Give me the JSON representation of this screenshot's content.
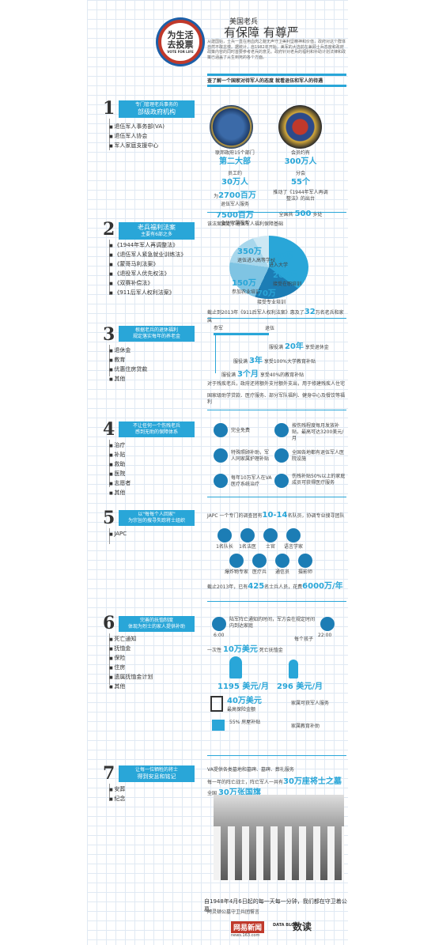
{
  "header": {
    "badge_line1": "为生活",
    "badge_line2": "去投票",
    "badge_sub": "VOTE FOR LIFE",
    "title_top": "美国老兵",
    "title_main": "有保障 有尊严",
    "intro": "从建国始，士兵一直在用血肉之躯无声守卫美利坚精神和价值，政府对这个群体自然不敢怠慢。据统计，自1982年开始，美军的大选前在兼顾士兵态度和政府政策内容的同时首要参考老兵的意见。政府针对老兵的福利和补助计划法律和政策已涵盖了从生到死的各个方面。",
    "banner": "查了解一个国家对待军人的态度 就看退伍和军人的待遇"
  },
  "s1": {
    "num": "1",
    "bar_l1": "专门管理老兵事务的",
    "bar_l2": "部级政府机构",
    "items": [
      "退伍军人事务部(VA)",
      "退伍军人协会",
      "军人家庭支援中心"
    ],
    "va_caption": "联邦政府15个部门",
    "va_big": "第二大部",
    "va_staff_label": "员工约",
    "va_staff": "30万人",
    "va_budget_pre": "为",
    "va_budget": "2700百万",
    "va_budget_suf": "退伍军人服务",
    "va_fund": "7500百万",
    "va_fund_suf": "全体家属服务",
    "al_caption": "会员约有",
    "al_members": "300万人",
    "al_branch_label": "分会",
    "al_branch": "55个",
    "al_note": "推动了《1944年军人再调整法》的出台",
    "al_posts_pre": "全国共",
    "al_posts": "500",
    "al_posts_suf": "多处"
  },
  "s2": {
    "num": "2",
    "bar_l1": "老兵福利法案",
    "bar_l2": "主要有6部之多",
    "items": [
      "《1944年军人再调整法》",
      "《退伍军人紧急就业训练法》",
      "《蒙哥马利法案》",
      "《退役军人优先权法》",
      "《双赛补偿法》",
      "《911后军人权利法案》"
    ],
    "note": "该法案奠定了退伍军人福利保障基础",
    "pie": [
      {
        "v": "350万",
        "t": "退伍进入高等学校"
      },
      {
        "v": "220万",
        "t": "进入大学"
      },
      {
        "v": "200万",
        "t": "接受在职培训"
      },
      {
        "v": "150万",
        "t": "参加农业培训"
      },
      {
        "v": "70万",
        "t": "接受专业培训"
      }
    ],
    "bottom_pre": "截止到2013年《911后军人权利法案》惠及了",
    "bottom_big": "32",
    "bottom_suf": "万名老兵和家属"
  },
  "s3": {
    "num": "3",
    "bar_l1": "根据老兵的退休福利",
    "bar_l2": "规定落实每年的养老金",
    "items": [
      "退休金",
      "教育",
      "优惠住房贷款",
      "其他"
    ],
    "tl_start": "参军",
    "tl_end": "退伍",
    "r1_pre": "服役满",
    "r1_big": "20年",
    "r1_suf": "享受退休金",
    "r2_pre": "服役满",
    "r2_big": "3年",
    "r2_suf": "享受100%大学教育补贴",
    "r3_pre": "服役满",
    "r3_big": "3个月",
    "r3_suf": "享受40%的教育补贴",
    "note1": "对于残疾老兵，政府还将额外支付额外支出，用于修建残疾人住宅",
    "note2": "国家级助学贷款、医疗服务、部分军队福利、健身中心及餐饮等福利"
  },
  "s4": {
    "num": "4",
    "bar_l1": "不让任何一个伤残老兵",
    "bar_l2": "感到无助的保障体系",
    "items": [
      "治疗",
      "补贴",
      "救助",
      "医院",
      "志愿者",
      "其他"
    ],
    "cells": [
      "完全免费",
      "按伤残程度每月发放补贴，最高可达3200美元/月",
      "特殊照顾补助，军人同家属护理补贴",
      "全国各地都有退伍军人医院设施",
      "每年10万军人在VA医疗系统治疗",
      "伤残补贴50%以上的家庭成员可获得医疗服务"
    ]
  },
  "s5": {
    "num": "5",
    "bar_l1": "以\"每每个人回家\"",
    "bar_l2": "为宗旨的搜寻失踪将士组织",
    "items": [
      "JAPC"
    ],
    "intro_pre": "JAPC 一个专门的调查团有",
    "intro_big": "10-14",
    "intro_suf": "名队员，协调专业搜寻团队",
    "roles": [
      "1名队长",
      "1名法医",
      "士官",
      "语言学家",
      "爆炸物专家",
      "医疗兵",
      "通信员",
      "摄影师"
    ],
    "bottom_pre": "截止2013年，已有",
    "bottom_n": "425",
    "bottom_mid": "名士兵人员，花费",
    "bottom_big": "6000万/年"
  },
  "s6": {
    "num": "6",
    "bar_l1": "完善的抚恤制度",
    "bar_l2": "体现为烈士的家人提供补助",
    "items": [
      "死亡通知",
      "抚恤金",
      "保险",
      "住房",
      "遗属抚恤金计划",
      "其他"
    ],
    "t_start": "6:00",
    "t_end": "22:00",
    "note": "陆军阵亡通知的时间，军方会在规定时间内到达家庭",
    "pay_pre": "一次性",
    "pay_big": "10万美元",
    "pay_suf": "死亡抚恤金",
    "child_label": "每个孩子",
    "amt1": "1195 美元/月",
    "amt2": "296 美元/月",
    "ins_big": "40万美元",
    "ins_suf": "最高保险金额",
    "rel": "家属可获军人服务",
    "house": "55%",
    "house_suf": "房屋补贴",
    "edu": "家属教育补助"
  },
  "s7": {
    "num": "7",
    "bar_l1": "让每一位牺牲的将士",
    "bar_l2": "得到安息和铭记",
    "items": [
      "安葬",
      "纪念"
    ],
    "note": "VA提供各类墓地和墓碑、墓碑、葬礼服务",
    "burial_pre": "每一年的阵亡战士，阵亡军人一共有",
    "burial_big": "30万座将士之墓",
    "burial_mid": "全国",
    "burial_big2": "30万张国旗"
  },
  "footer": {
    "quote": "自1948年4月6日起的每一天每一分钟，我们都在守卫着公墓。",
    "sub": "阿灵顿公墓守卫兵团誓言",
    "logo1": "网易新闻",
    "logo2": "DATA BLOG",
    "logo3": "数读",
    "site": "news.163.com"
  }
}
